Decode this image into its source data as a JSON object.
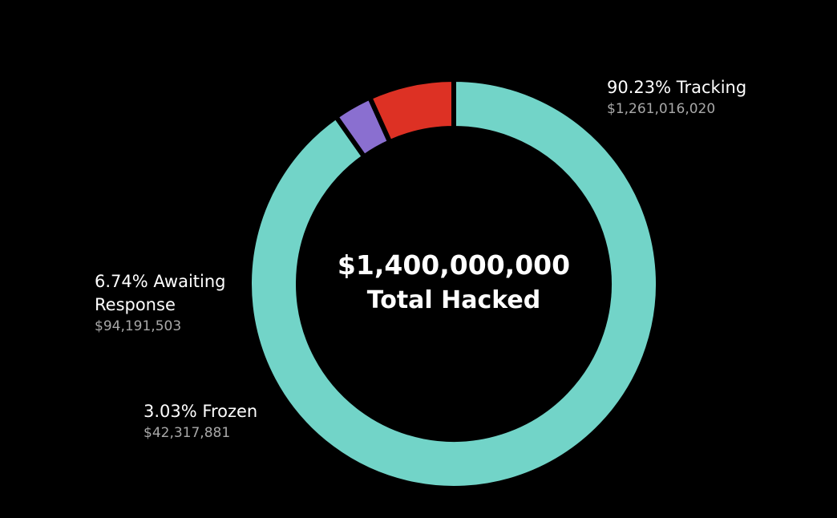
{
  "chart_data": {
    "type": "pie",
    "style": "donut",
    "center_value": "$1,400,000,000",
    "center_label": "Total Hacked",
    "start_angle_deg": -90,
    "slices": [
      {
        "name": "Tracking",
        "percent_label": "90.23% Tracking",
        "amount": "$1,261,016,020",
        "value": 1261016020,
        "color": "#72d4c8"
      },
      {
        "name": "Frozen",
        "percent_label": "3.03% Frozen",
        "amount": "$42,317,881",
        "value": 42317881,
        "color": "#8a6fd0"
      },
      {
        "name": "Awaiting Response",
        "percent_label": "6.74% Awaiting\nResponse",
        "amount": "$94,191,503",
        "value": 94191503,
        "color": "#dd3124"
      }
    ]
  }
}
